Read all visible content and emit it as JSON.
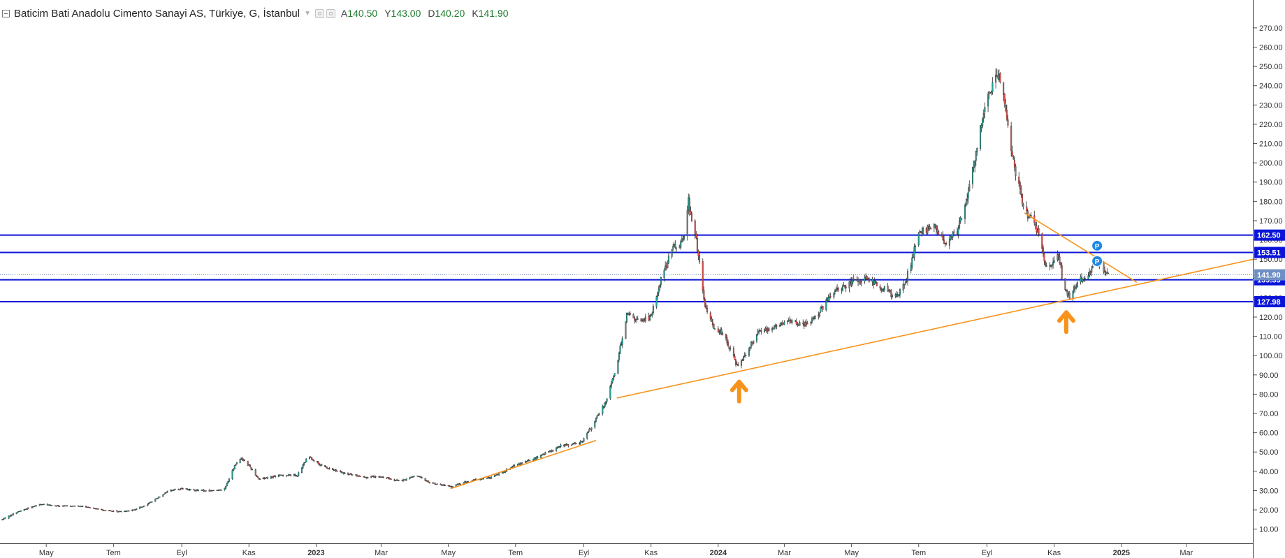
{
  "header": {
    "title": "Baticim Bati Anadolu Cimento Sanayi AS, Türkiye, G, İstanbul",
    "ohlc": [
      {
        "label": "A",
        "value": "140.50"
      },
      {
        "label": "Y",
        "value": "143.00"
      },
      {
        "label": "D",
        "value": "140.20"
      },
      {
        "label": "K",
        "value": "141.90"
      }
    ]
  },
  "colors": {
    "up": "#26a69a",
    "down": "#ef5350",
    "wick": "#2b2b2b",
    "hline": "#0a14d8",
    "trend": "#f7931a",
    "marker": "#1e88e5",
    "grid_axis_text": "#333333"
  },
  "chart_data": {
    "type": "candlestick",
    "ylim": [
      3,
      283
    ],
    "y_ticks": [
      "10.00",
      "20.00",
      "30.00",
      "40.00",
      "50.00",
      "60.00",
      "70.00",
      "80.00",
      "90.00",
      "100.00",
      "110.00",
      "120.00",
      "130.00",
      "140.00",
      "150.00",
      "160.00",
      "170.00",
      "180.00",
      "190.00",
      "200.00",
      "210.00",
      "220.00",
      "230.00",
      "240.00",
      "250.00",
      "260.00",
      "270.00"
    ],
    "x_ticks": [
      "May",
      "Tem",
      "Eyl",
      "Kas",
      "2023",
      "Mar",
      "May",
      "Tem",
      "Eyl",
      "Kas",
      "2024",
      "Mar",
      "May",
      "Tem",
      "Eyl",
      "Kas",
      "2025",
      "Mar"
    ],
    "x_tick_dates": [
      "2022-05-01",
      "2022-07-01",
      "2022-09-01",
      "2022-11-01",
      "2023-01-01",
      "2023-03-01",
      "2023-05-01",
      "2023-07-01",
      "2023-09-01",
      "2023-11-01",
      "2024-01-01",
      "2024-03-01",
      "2024-05-01",
      "2024-07-01",
      "2024-09-01",
      "2024-11-01",
      "2025-01-01",
      "2025-03-01"
    ],
    "x_range": [
      "2022-03-20",
      "2025-05-01"
    ],
    "price_path": [
      [
        "2022-03-22",
        15
      ],
      [
        "2022-04-05",
        19
      ],
      [
        "2022-04-25",
        23
      ],
      [
        "2022-05-10",
        22
      ],
      [
        "2022-06-01",
        22
      ],
      [
        "2022-06-20",
        20
      ],
      [
        "2022-07-05",
        19
      ],
      [
        "2022-07-20",
        20
      ],
      [
        "2022-08-01",
        23
      ],
      [
        "2022-08-20",
        30
      ],
      [
        "2022-09-01",
        31
      ],
      [
        "2022-09-15",
        30
      ],
      [
        "2022-10-01",
        30
      ],
      [
        "2022-10-10",
        31
      ],
      [
        "2022-10-20",
        44
      ],
      [
        "2022-10-25",
        47
      ],
      [
        "2022-11-01",
        43
      ],
      [
        "2022-11-10",
        36
      ],
      [
        "2022-12-01",
        38
      ],
      [
        "2022-12-15",
        38
      ],
      [
        "2022-12-25",
        48
      ],
      [
        "2023-01-05",
        43
      ],
      [
        "2023-01-25",
        39
      ],
      [
        "2023-02-15",
        37
      ],
      [
        "2023-03-01",
        37
      ],
      [
        "2023-03-20",
        35
      ],
      [
        "2023-04-01",
        38
      ],
      [
        "2023-04-15",
        34
      ],
      [
        "2023-05-03",
        32
      ],
      [
        "2023-05-20",
        35
      ],
      [
        "2023-06-10",
        37
      ],
      [
        "2023-07-01",
        43
      ],
      [
        "2023-07-20",
        47
      ],
      [
        "2023-08-10",
        53
      ],
      [
        "2023-08-30",
        55
      ],
      [
        "2023-09-10",
        65
      ],
      [
        "2023-09-20",
        75
      ],
      [
        "2023-10-01",
        95
      ],
      [
        "2023-10-10",
        122
      ],
      [
        "2023-10-20",
        118
      ],
      [
        "2023-11-01",
        120
      ],
      [
        "2023-11-10",
        140
      ],
      [
        "2023-11-20",
        155
      ],
      [
        "2023-11-30",
        160
      ],
      [
        "2023-12-05",
        180
      ],
      [
        "2023-12-12",
        160
      ],
      [
        "2023-12-20",
        125
      ],
      [
        "2023-12-28",
        115
      ],
      [
        "2024-01-05",
        112
      ],
      [
        "2024-01-18",
        95
      ],
      [
        "2024-01-25",
        100
      ],
      [
        "2024-02-05",
        112
      ],
      [
        "2024-02-20",
        115
      ],
      [
        "2024-03-05",
        118
      ],
      [
        "2024-03-20",
        116
      ],
      [
        "2024-04-01",
        122
      ],
      [
        "2024-04-15",
        133
      ],
      [
        "2024-05-01",
        138
      ],
      [
        "2024-05-15",
        140
      ],
      [
        "2024-06-01",
        134
      ],
      [
        "2024-06-10",
        130
      ],
      [
        "2024-06-20",
        140
      ],
      [
        "2024-07-01",
        163
      ],
      [
        "2024-07-15",
        168
      ],
      [
        "2024-07-25",
        157
      ],
      [
        "2024-08-05",
        165
      ],
      [
        "2024-08-15",
        185
      ],
      [
        "2024-08-25",
        215
      ],
      [
        "2024-09-03",
        235
      ],
      [
        "2024-09-10",
        248
      ],
      [
        "2024-09-15",
        240
      ],
      [
        "2024-09-25",
        200
      ],
      [
        "2024-10-05",
        175
      ],
      [
        "2024-10-15",
        168
      ],
      [
        "2024-10-25",
        145
      ],
      [
        "2024-11-01",
        148
      ],
      [
        "2024-11-05",
        152
      ],
      [
        "2024-11-10",
        135
      ],
      [
        "2024-11-15",
        130
      ],
      [
        "2024-11-22",
        138
      ],
      [
        "2024-12-01",
        142
      ],
      [
        "2024-12-10",
        150
      ],
      [
        "2024-12-15",
        145
      ],
      [
        "2024-12-20",
        141.9
      ]
    ],
    "horizontal_lines": [
      {
        "value": 162.5,
        "label": "162.50"
      },
      {
        "value": 153.51,
        "label": "153.51"
      },
      {
        "value": 139.33,
        "label": "139.33"
      },
      {
        "value": 127.98,
        "label": "127.98"
      }
    ],
    "last_price": {
      "value": 141.9,
      "label": "141.90"
    },
    "trendlines": [
      {
        "p1": [
          "2023-05-03",
          31
        ],
        "p2": [
          "2023-09-12",
          56
        ]
      },
      {
        "p1": [
          "2023-10-01",
          78
        ],
        "p2": [
          "2025-05-01",
          150
        ]
      },
      {
        "p1": [
          "2024-10-05",
          174
        ],
        "p2": [
          "2025-01-15",
          138
        ]
      }
    ],
    "arrows": [
      {
        "date": "2024-01-20",
        "value": 85
      },
      {
        "date": "2024-11-12",
        "value": 121
      }
    ],
    "markers": [
      {
        "date": "2024-12-10",
        "value": 157,
        "label": "P"
      },
      {
        "date": "2024-12-10",
        "value": 149,
        "label": "P"
      }
    ]
  }
}
